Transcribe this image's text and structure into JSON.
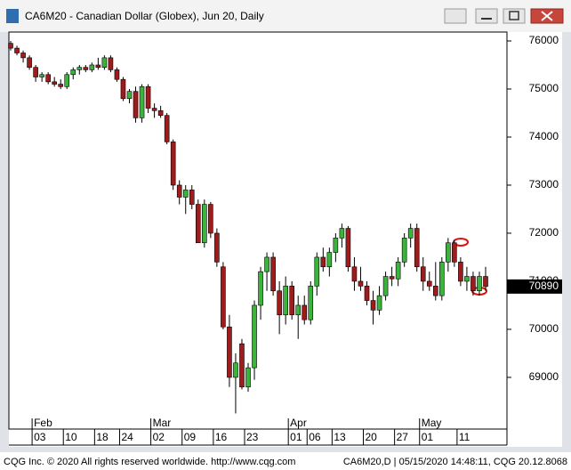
{
  "chart_data": {
    "type": "candlestick",
    "title": "CA6M20 - Canadian Dollar (Globex), Jun 20, Daily",
    "footer_left": "CQG Inc. © 2020 All rights reserved worldwide. http://www.cqg.com",
    "footer_right": "CA6M20,D | 05/15/2020 14:48:11, CQG 20.12.8068",
    "up_color": "#3cb43c",
    "down_color": "#9e1c1c",
    "last_price": 70890,
    "categories": [
      null,
      null,
      null,
      null,
      "03",
      null,
      null,
      null,
      null,
      "10",
      null,
      null,
      null,
      null,
      "18",
      null,
      null,
      null,
      "24",
      null,
      null,
      null,
      null,
      "02",
      null,
      null,
      null,
      null,
      "09",
      null,
      null,
      null,
      null,
      "16",
      null,
      null,
      null,
      null,
      "23",
      null,
      null,
      null,
      null,
      null,
      null,
      "01",
      null,
      null,
      "06",
      null,
      null,
      null,
      "13",
      null,
      null,
      null,
      null,
      "20",
      null,
      null,
      null,
      null,
      "27",
      null,
      null,
      null,
      "01",
      null,
      null,
      null,
      null,
      null,
      "11",
      null,
      null,
      null,
      null
    ],
    "months": [
      null,
      null,
      null,
      null,
      "Feb",
      null,
      null,
      null,
      null,
      null,
      null,
      null,
      null,
      null,
      null,
      null,
      null,
      null,
      null,
      null,
      null,
      null,
      null,
      "Mar",
      null,
      null,
      null,
      null,
      null,
      null,
      null,
      null,
      null,
      null,
      null,
      null,
      null,
      null,
      null,
      null,
      null,
      null,
      null,
      null,
      null,
      "Apr",
      null,
      null,
      null,
      null,
      null,
      null,
      null,
      null,
      null,
      null,
      null,
      null,
      null,
      null,
      null,
      null,
      null,
      null,
      null,
      null,
      "May",
      null,
      null,
      null,
      null,
      null,
      null,
      null,
      null,
      null,
      null
    ],
    "open": [
      75950,
      75850,
      75750,
      75650,
      75450,
      75250,
      75300,
      75150,
      75100,
      75050,
      75300,
      75400,
      75450,
      75400,
      75500,
      75450,
      75650,
      75400,
      75200,
      74800,
      74950,
      74400,
      75050,
      74600,
      74550,
      74450,
      73900,
      73000,
      72750,
      72900,
      72600,
      71800,
      72600,
      72000,
      71300,
      70050,
      69000,
      69700,
      68800,
      69200,
      70500,
      71200,
      71500,
      70800,
      70300,
      70900,
      70300,
      70500,
      70200,
      70900,
      71500,
      71300,
      71600,
      71900,
      72100,
      71300,
      71000,
      70900,
      70600,
      70400,
      70700,
      71100,
      71050,
      71400,
      71900,
      72100,
      71300,
      71000,
      70900,
      70700,
      71400,
      71800,
      71400,
      71000,
      71100,
      70800,
      71100
    ],
    "high": [
      76000,
      75900,
      75800,
      75700,
      75500,
      75350,
      75350,
      75250,
      75200,
      75350,
      75450,
      75500,
      75500,
      75550,
      75650,
      75700,
      75700,
      75450,
      75250,
      75000,
      75050,
      75100,
      75100,
      74700,
      74650,
      74500,
      73950,
      73100,
      73000,
      73000,
      72700,
      72700,
      72650,
      72100,
      71400,
      70300,
      69500,
      69800,
      69300,
      70600,
      71300,
      71600,
      71600,
      71000,
      71100,
      71000,
      70700,
      70700,
      71000,
      71600,
      71700,
      71700,
      72000,
      72200,
      72150,
      71500,
      71300,
      71000,
      70800,
      70900,
      71200,
      71300,
      71500,
      72000,
      72200,
      72200,
      71500,
      71200,
      71400,
      71500,
      71900,
      71850,
      71500,
      71300,
      71200,
      71200,
      71300
    ],
    "low": [
      75800,
      75700,
      75550,
      75400,
      75150,
      75150,
      75100,
      75050,
      75000,
      75000,
      75200,
      75300,
      75350,
      75350,
      75400,
      75400,
      75350,
      75150,
      74750,
      74700,
      74300,
      74300,
      74500,
      74400,
      74400,
      73850,
      72900,
      72600,
      72400,
      72500,
      71800,
      71700,
      71900,
      71300,
      70000,
      68800,
      68250,
      68750,
      68700,
      68950,
      70200,
      70800,
      70700,
      69900,
      70100,
      70200,
      69800,
      70100,
      70100,
      70700,
      71200,
      71100,
      71400,
      71700,
      71200,
      70800,
      70800,
      70500,
      70100,
      70300,
      70600,
      70900,
      70900,
      71300,
      71700,
      71200,
      70800,
      70800,
      70600,
      70600,
      71200,
      71300,
      70900,
      70800,
      70700,
      70700,
      70800
    ],
    "close": [
      75850,
      75750,
      75650,
      75450,
      75250,
      75300,
      75150,
      75100,
      75050,
      75300,
      75400,
      75450,
      75400,
      75500,
      75450,
      75650,
      75400,
      75200,
      74800,
      74950,
      74400,
      75050,
      74600,
      74550,
      74450,
      73900,
      73000,
      72750,
      72900,
      72600,
      71800,
      72600,
      72000,
      71400,
      70050,
      69000,
      69300,
      68800,
      69200,
      70500,
      71200,
      71500,
      70800,
      70300,
      70900,
      70300,
      70500,
      70200,
      70900,
      71500,
      71300,
      71600,
      71900,
      72100,
      71300,
      71000,
      70900,
      70600,
      70400,
      70700,
      71100,
      71050,
      71400,
      71900,
      72100,
      71300,
      71000,
      70900,
      70700,
      71400,
      71800,
      71400,
      71000,
      71100,
      70800,
      71100,
      70890
    ],
    "ylim": [
      67925,
      76185
    ],
    "yticks": [
      69000,
      70000,
      71000,
      72000,
      73000,
      74000,
      75000,
      76000
    ]
  }
}
